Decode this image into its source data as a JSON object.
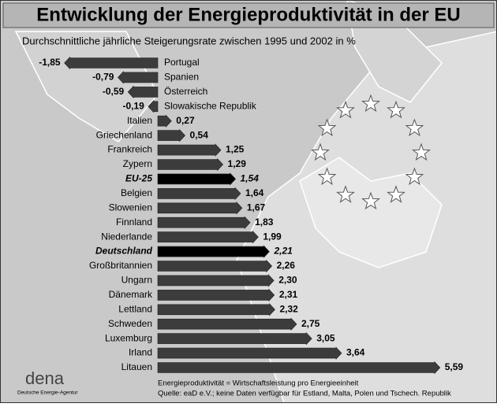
{
  "chart_data": {
    "type": "bar",
    "orientation": "horizontal",
    "title": "Entwicklung der Energieproduktivität in der EU",
    "subtitle": "Durchschnittliche jährliche Steigerungsrate zwischen 1995 und 2002 in %",
    "categories": [
      "Portugal",
      "Spanien",
      "Österreich",
      "Slowakische Republik",
      "Italien",
      "Griechenland",
      "Frankreich",
      "Zypern",
      "EU-25",
      "Belgien",
      "Slowenien",
      "Finnland",
      "Niederlande",
      "Deutschland",
      "Großbritannien",
      "Ungarn",
      "Dänemark",
      "Lettland",
      "Schweden",
      "Luxemburg",
      "Irland",
      "Litauen"
    ],
    "values": [
      -1.85,
      -0.79,
      -0.59,
      -0.19,
      0.27,
      0.54,
      1.25,
      1.29,
      1.54,
      1.64,
      1.67,
      1.83,
      1.99,
      2.21,
      2.26,
      2.3,
      2.31,
      2.32,
      2.75,
      3.05,
      3.64,
      5.59
    ],
    "value_labels": [
      "-1,85",
      "-0,79",
      "-0,59",
      "-0,19",
      "0,27",
      "0,54",
      "1,25",
      "1,29",
      "1,54",
      "1,64",
      "1,67",
      "1,83",
      "1,99",
      "2,21",
      "2,26",
      "2,30",
      "2,31",
      "2,32",
      "2,75",
      "3,05",
      "3,64",
      "5,59"
    ],
    "colors": [
      "#3c3c3c",
      "#3c3c3c",
      "#3c3c3c",
      "#3c3c3c",
      "#3c3c3c",
      "#3c3c3c",
      "#3c3c3c",
      "#3c3c3c",
      "#000000",
      "#3c3c3c",
      "#3c3c3c",
      "#3c3c3c",
      "#3c3c3c",
      "#000000",
      "#3c3c3c",
      "#3c3c3c",
      "#3c3c3c",
      "#3c3c3c",
      "#3c3c3c",
      "#3c3c3c",
      "#3c3c3c",
      "#3c3c3c"
    ],
    "xlim": [
      -2,
      6
    ],
    "notes": [
      "Energieproduktivität = Wirtschaftsleistung pro Energieeinheit",
      "Quelle: eaD e.V.; keine Daten verfügbar für Estland, Malta, Polen und Tschech. Republik"
    ],
    "logo": {
      "name": "dena",
      "subtitle": "Deutsche Energie-Agentur"
    }
  }
}
